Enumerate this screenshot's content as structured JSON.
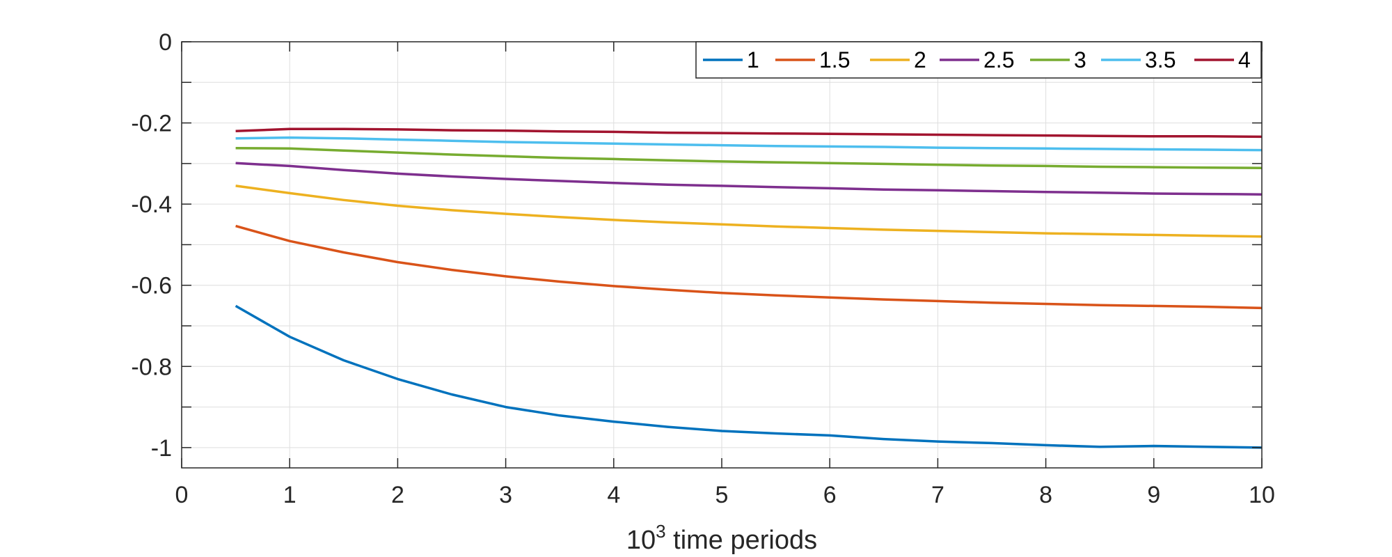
{
  "chart_data": {
    "type": "line",
    "title": "",
    "xlabel_base": "10",
    "xlabel_exp": "3",
    "xlabel_rest": " time periods",
    "ylabel": "",
    "xlim": [
      0,
      10
    ],
    "ylim": [
      -1.05,
      0
    ],
    "xticks": [
      0,
      1,
      2,
      3,
      4,
      5,
      6,
      7,
      8,
      9,
      10
    ],
    "xtick_labels": [
      "0",
      "1",
      "2",
      "3",
      "4",
      "5",
      "6",
      "7",
      "8",
      "9",
      "10"
    ],
    "yticks": [
      0,
      -0.2,
      -0.4,
      -0.6,
      -0.8,
      -1
    ],
    "ytick_labels": [
      "0",
      "-0.2",
      "-0.4",
      "-0.6",
      "-0.8",
      "-1"
    ],
    "grid": true,
    "legend_position": "top-right",
    "x": [
      0.5,
      1,
      1.5,
      2,
      2.5,
      3,
      3.5,
      4,
      4.5,
      5,
      5.5,
      6,
      6.5,
      7,
      7.5,
      8,
      8.5,
      9,
      9.5,
      10
    ],
    "series": [
      {
        "name": "1",
        "color": "#0072BD",
        "values": [
          -0.651,
          -0.727,
          -0.785,
          -0.831,
          -0.869,
          -0.9,
          -0.921,
          -0.936,
          -0.949,
          -0.959,
          -0.965,
          -0.97,
          -0.979,
          -0.985,
          -0.989,
          -0.994,
          -0.998,
          -0.996,
          -0.998,
          -1.0
        ]
      },
      {
        "name": "1.5",
        "color": "#D95319",
        "values": [
          -0.454,
          -0.491,
          -0.519,
          -0.543,
          -0.562,
          -0.578,
          -0.591,
          -0.602,
          -0.611,
          -0.619,
          -0.625,
          -0.63,
          -0.635,
          -0.639,
          -0.643,
          -0.646,
          -0.649,
          -0.651,
          -0.653,
          -0.656
        ]
      },
      {
        "name": "2",
        "color": "#EDB120",
        "values": [
          -0.355,
          -0.373,
          -0.39,
          -0.404,
          -0.415,
          -0.424,
          -0.432,
          -0.439,
          -0.445,
          -0.45,
          -0.455,
          -0.459,
          -0.463,
          -0.466,
          -0.469,
          -0.472,
          -0.474,
          -0.476,
          -0.478,
          -0.48
        ]
      },
      {
        "name": "2.5",
        "color": "#7E2F8E",
        "values": [
          -0.299,
          -0.306,
          -0.316,
          -0.325,
          -0.332,
          -0.338,
          -0.343,
          -0.348,
          -0.352,
          -0.355,
          -0.358,
          -0.361,
          -0.364,
          -0.366,
          -0.368,
          -0.37,
          -0.372,
          -0.374,
          -0.375,
          -0.376
        ]
      },
      {
        "name": "3",
        "color": "#77AC30",
        "values": [
          -0.262,
          -0.263,
          -0.268,
          -0.273,
          -0.278,
          -0.282,
          -0.286,
          -0.289,
          -0.292,
          -0.295,
          -0.297,
          -0.299,
          -0.301,
          -0.303,
          -0.305,
          -0.306,
          -0.308,
          -0.309,
          -0.31,
          -0.311
        ]
      },
      {
        "name": "3.5",
        "color": "#4DBEEE",
        "values": [
          -0.238,
          -0.236,
          -0.238,
          -0.241,
          -0.244,
          -0.247,
          -0.249,
          -0.251,
          -0.253,
          -0.255,
          -0.257,
          -0.258,
          -0.259,
          -0.261,
          -0.262,
          -0.263,
          -0.264,
          -0.265,
          -0.266,
          -0.267
        ]
      },
      {
        "name": "4",
        "color": "#A2142F",
        "values": [
          -0.22,
          -0.215,
          -0.215,
          -0.216,
          -0.218,
          -0.219,
          -0.221,
          -0.222,
          -0.224,
          -0.225,
          -0.226,
          -0.227,
          -0.228,
          -0.229,
          -0.23,
          -0.231,
          -0.232,
          -0.233,
          -0.233,
          -0.234
        ]
      }
    ]
  }
}
